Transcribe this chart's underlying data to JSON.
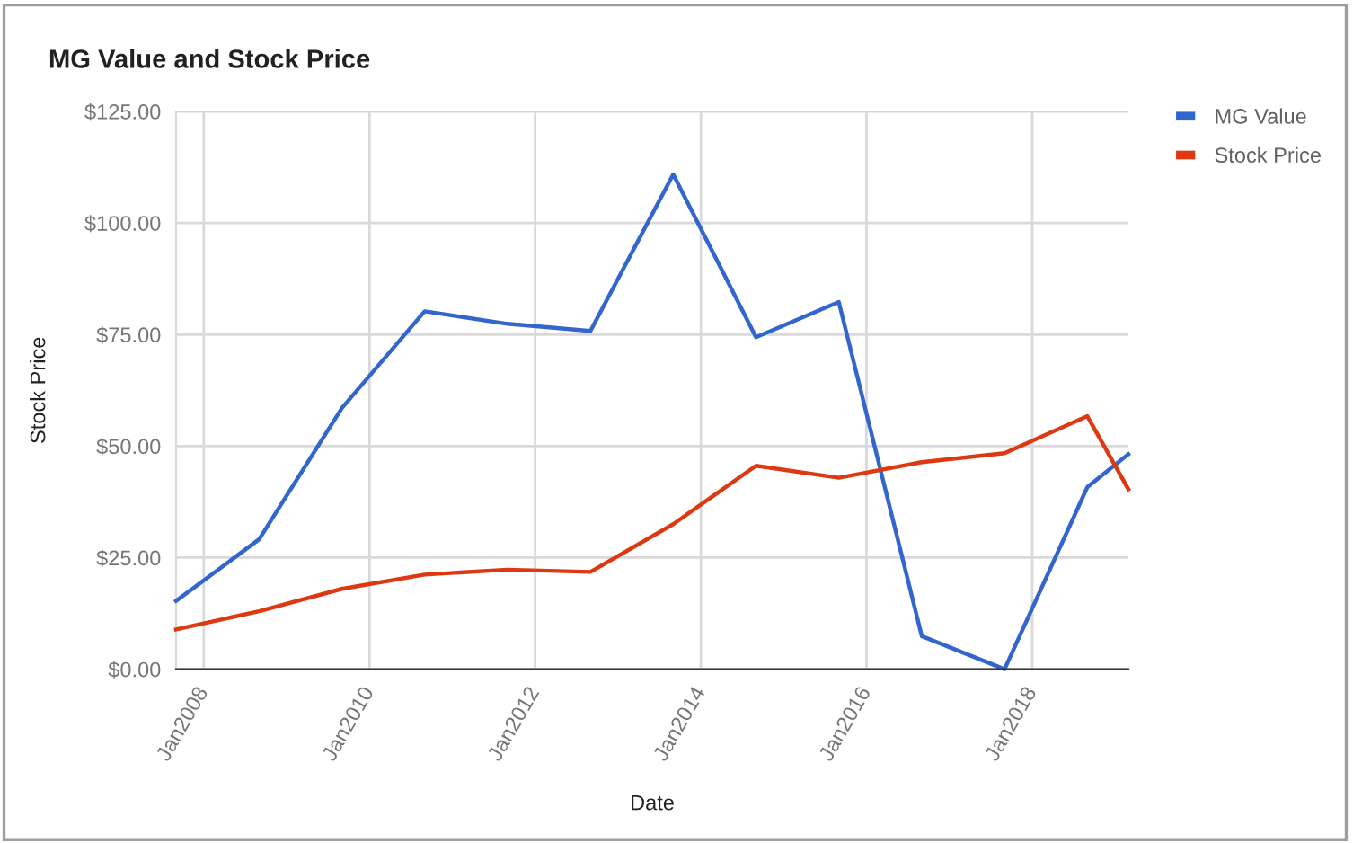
{
  "chart_data": {
    "type": "line",
    "title": "MG Value and Stock Price",
    "xlabel": "Date",
    "ylabel": "Stock Price",
    "x": [
      "2007-09",
      "2008-09",
      "2009-09",
      "2010-09",
      "2011-09",
      "2012-09",
      "2013-09",
      "2014-09",
      "2015-09",
      "2016-09",
      "2017-09",
      "2018-09",
      "2019-03"
    ],
    "series": [
      {
        "name": "MG Value",
        "color": "#3366cc",
        "values": [
          15.3,
          29.1,
          58.5,
          80.2,
          77.4,
          75.8,
          110.9,
          74.4,
          82.3,
          7.4,
          0,
          40.8,
          48.2
        ]
      },
      {
        "name": "Stock Price",
        "color": "#dc3912",
        "values": [
          8.9,
          13.0,
          18.0,
          21.2,
          22.3,
          21.8,
          32.5,
          45.6,
          42.9,
          46.4,
          48.4,
          56.7,
          40.3
        ]
      }
    ],
    "xlim": [
      "2007-09",
      "2019-03"
    ],
    "xticks": [
      {
        "value": "2008-01",
        "label": "Jan2008"
      },
      {
        "value": "2010-01",
        "label": "Jan2010"
      },
      {
        "value": "2012-01",
        "label": "Jan2012"
      },
      {
        "value": "2014-01",
        "label": "Jan2014"
      },
      {
        "value": "2016-01",
        "label": "Jan2016"
      },
      {
        "value": "2018-01",
        "label": "Jan2018"
      }
    ],
    "ylim": [
      0,
      125
    ],
    "yticks": [
      {
        "value": 0,
        "label": "$0.00"
      },
      {
        "value": 25,
        "label": "$25.00"
      },
      {
        "value": 50,
        "label": "$50.00"
      },
      {
        "value": 75,
        "label": "$75.00"
      },
      {
        "value": 100,
        "label": "$100.00"
      },
      {
        "value": 125,
        "label": "$125.00"
      }
    ],
    "grid": true,
    "legend": "top right",
    "marker": "none",
    "line_style": "solid"
  }
}
